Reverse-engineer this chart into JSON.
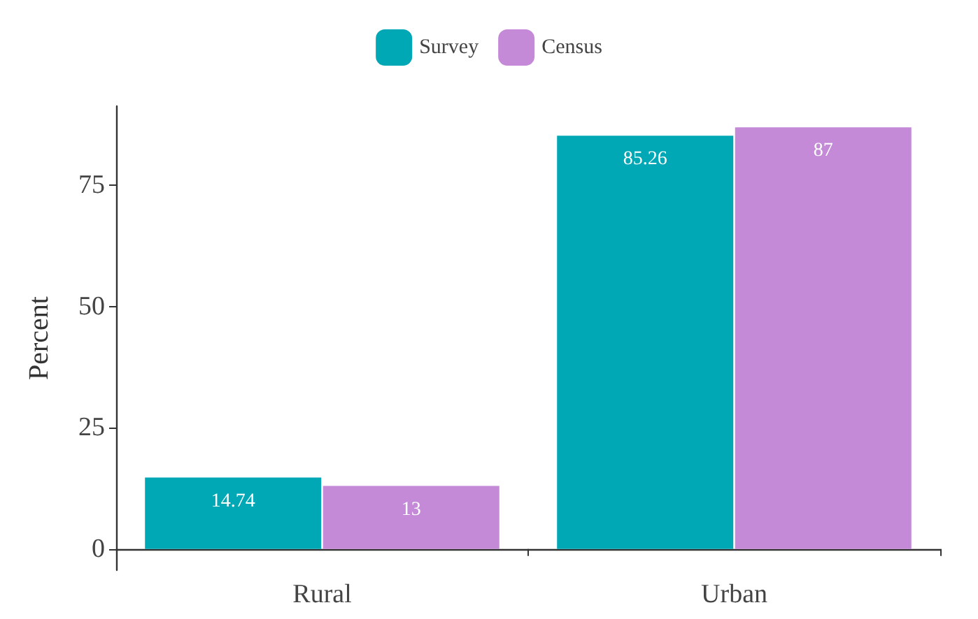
{
  "chart_data": {
    "type": "bar",
    "ylabel": "Percent",
    "categories": [
      "Rural",
      "Urban"
    ],
    "series": [
      {
        "name": "Survey",
        "color": "#00a8b5",
        "values": [
          14.74,
          85.26
        ]
      },
      {
        "name": "Census",
        "color": "#c48ad8",
        "values": [
          13,
          87
        ]
      }
    ],
    "ylim": [
      -4.35,
      91.35
    ],
    "yticks": [
      0,
      25,
      50,
      75
    ],
    "grid": false,
    "legend": "top",
    "data_labels": true
  }
}
